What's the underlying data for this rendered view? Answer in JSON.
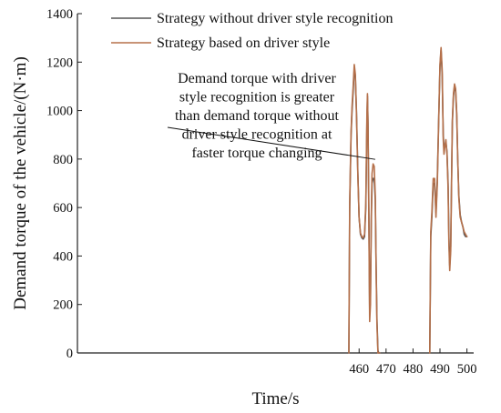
{
  "chart_data": {
    "type": "line",
    "xlabel": "Time/s",
    "ylabel": "Demand torque of the vehicle/(N·m)",
    "xlim": [
      355.5,
      502.5
    ],
    "ylim": [
      0,
      1400
    ],
    "x_ticks": [
      460,
      470,
      480,
      490,
      500
    ],
    "x_tick_labels": [
      "460",
      "470",
      "480",
      "490",
      "500"
    ],
    "y_ticks": [
      0,
      200,
      400,
      600,
      800,
      1000,
      1200,
      1400
    ],
    "y_tick_labels": [
      "0",
      "200",
      "400",
      "600",
      "800",
      "1000",
      "1200",
      "1400"
    ],
    "grid": false,
    "legend_position": "top-center",
    "annotation": {
      "lines": [
        "Demand torque with driver",
        "style recognition is greater",
        "than demand torque without",
        "driver style recognition at",
        "faster torque changing"
      ],
      "target": [
        465.3,
        780
      ]
    },
    "series": [
      {
        "name": "Strategy without driver style recognition",
        "color": "#555555",
        "x": [
          456.2,
          456.5,
          457.0,
          457.4,
          457.8,
          458.2,
          458.6,
          459.0,
          459.5,
          460.0,
          460.5,
          461.0,
          461.5,
          462.0,
          462.5,
          462.9,
          463.1,
          463.3,
          463.6,
          463.9,
          464.2,
          464.5,
          464.8,
          465.2,
          465.6,
          466.0,
          466.3,
          466.6,
          467.0,
          467.3,
          467.6,
          486.2,
          486.6,
          487.0,
          487.5,
          488.0,
          488.5,
          489.0,
          489.5,
          490.0,
          490.4,
          490.8,
          491.2,
          491.5,
          491.8,
          492.2,
          492.6,
          493.0,
          493.3,
          493.6,
          494.0,
          494.3,
          494.6,
          495.0,
          495.4,
          495.8,
          496.2,
          496.6,
          497.0,
          497.5,
          498.0,
          498.5,
          499.0,
          499.5,
          500.0
        ],
        "y": [
          0,
          600,
          900,
          1000,
          1080,
          1170,
          1140,
          1000,
          750,
          560,
          490,
          475,
          470,
          480,
          600,
          950,
          1060,
          950,
          600,
          180,
          230,
          540,
          700,
          720,
          720,
          630,
          360,
          140,
          10,
          0,
          0,
          0,
          480,
          560,
          700,
          700,
          580,
          720,
          950,
          1180,
          1250,
          1150,
          900,
          840,
          850,
          870,
          830,
          700,
          480,
          360,
          440,
          700,
          950,
          1060,
          1100,
          1080,
          980,
          800,
          650,
          570,
          540,
          520,
          490,
          480,
          480
        ]
      },
      {
        "name": "Strategy based on driver style",
        "color": "#b5704a",
        "x": [
          456.2,
          456.5,
          457.0,
          457.4,
          457.8,
          458.2,
          458.6,
          459.0,
          459.5,
          460.0,
          460.5,
          461.0,
          461.5,
          462.0,
          462.5,
          462.9,
          463.1,
          463.3,
          463.6,
          463.9,
          464.2,
          464.5,
          464.8,
          465.2,
          465.6,
          466.0,
          466.3,
          466.6,
          467.0,
          467.3,
          467.6,
          486.2,
          486.6,
          487.0,
          487.5,
          488.0,
          488.5,
          489.0,
          489.5,
          490.0,
          490.4,
          490.8,
          491.2,
          491.5,
          491.8,
          492.2,
          492.6,
          493.0,
          493.3,
          493.6,
          494.0,
          494.3,
          494.6,
          495.0,
          495.4,
          495.8,
          496.2,
          496.6,
          497.0,
          497.5,
          498.0,
          498.5,
          499.0,
          499.5,
          500.0
        ],
        "y": [
          0,
          620,
          910,
          1020,
          1100,
          1190,
          1150,
          990,
          740,
          560,
          495,
          480,
          475,
          490,
          620,
          980,
          1070,
          930,
          560,
          130,
          200,
          560,
          740,
          780,
          770,
          650,
          350,
          120,
          0,
          0,
          0,
          0,
          500,
          580,
          720,
          720,
          560,
          700,
          940,
          1190,
          1260,
          1170,
          880,
          820,
          850,
          880,
          820,
          680,
          450,
          340,
          420,
          700,
          960,
          1070,
          1110,
          1090,
          990,
          800,
          640,
          560,
          540,
          520,
          500,
          490,
          480
        ]
      }
    ]
  }
}
